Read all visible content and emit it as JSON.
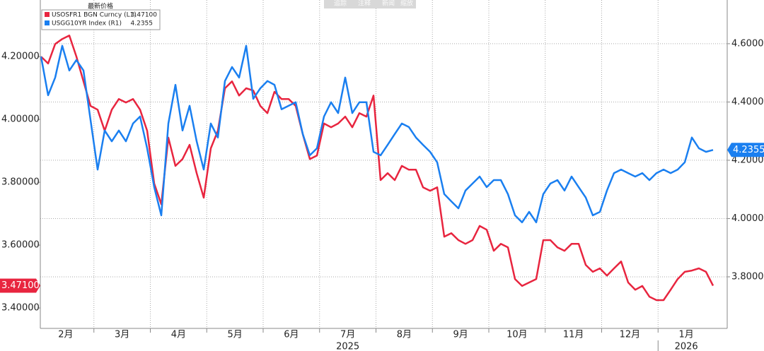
{
  "toolbar": [
    "追踪",
    "注释",
    "新闻",
    "缩放"
  ],
  "chart_data": {
    "type": "line",
    "legend_title": "最新价格",
    "months": [
      "2月",
      "3月",
      "4月",
      "5月",
      "6月",
      "7月",
      "8月",
      "9月",
      "10月",
      "11月",
      "12月",
      "1月"
    ],
    "years": [
      "2025",
      "2026"
    ],
    "ylim": [
      3.335,
      4.38
    ],
    "yticks": [
      {
        "value": 3.4,
        "label": "3.40000"
      },
      {
        "value": 3.6,
        "label": "3.60000"
      },
      {
        "value": 3.8,
        "label": "3.80000"
      },
      {
        "value": 4.0,
        "label": "4.00000"
      },
      {
        "value": 4.2,
        "label": "4.20000"
      }
    ],
    "y2lim": [
      3.623,
      4.75
    ],
    "y2ticks": [
      {
        "value": 3.8,
        "label": "3.8000"
      },
      {
        "value": 4.0,
        "label": "4.0000"
      },
      {
        "value": 4.2,
        "label": "4.2000"
      },
      {
        "value": 4.4,
        "label": "4.4000"
      },
      {
        "value": 4.6,
        "label": "4.6000"
      }
    ],
    "grid": true,
    "series": [
      {
        "name": "USOSFR1 BGN Curncy  (L1)",
        "color": "#e8253f",
        "axis": "y",
        "last_value_label": "3.47100",
        "values": [
          4.2,
          4.178,
          4.24,
          4.256,
          4.267,
          4.2,
          4.121,
          4.043,
          4.031,
          3.964,
          4.031,
          4.065,
          4.054,
          4.065,
          4.031,
          3.964,
          3.796,
          3.73,
          3.942,
          3.852,
          3.874,
          3.919,
          3.829,
          3.751,
          3.908,
          3.964,
          4.099,
          4.121,
          4.076,
          4.099,
          4.092,
          4.043,
          4.02,
          4.088,
          4.065,
          4.065,
          4.043,
          3.953,
          3.874,
          3.885,
          3.987,
          3.975,
          3.987,
          4.009,
          3.975,
          4.02,
          4.009,
          4.076,
          3.807,
          3.829,
          3.807,
          3.852,
          3.84,
          3.84,
          3.784,
          3.773,
          3.784,
          3.627,
          3.638,
          3.616,
          3.604,
          3.616,
          3.661,
          3.649,
          3.582,
          3.604,
          3.593,
          3.492,
          3.47,
          3.481,
          3.492,
          3.616,
          3.616,
          3.593,
          3.582,
          3.604,
          3.604,
          3.537,
          3.515,
          3.526,
          3.503,
          3.526,
          3.548,
          3.481,
          3.458,
          3.47,
          3.436,
          3.425,
          3.425,
          3.458,
          3.492,
          3.515,
          3.519,
          3.526,
          3.515,
          3.471
        ]
      },
      {
        "name": "USGG10YR Index  (R1)",
        "color": "#1a7ff0",
        "axis": "y2",
        "last_value_label": "4.2355",
        "values": [
          4.556,
          4.423,
          4.484,
          4.593,
          4.508,
          4.544,
          4.508,
          4.338,
          4.168,
          4.302,
          4.265,
          4.302,
          4.265,
          4.326,
          4.35,
          4.241,
          4.108,
          4.011,
          4.326,
          4.459,
          4.302,
          4.387,
          4.265,
          4.168,
          4.326,
          4.278,
          4.472,
          4.52,
          4.484,
          4.593,
          4.411,
          4.447,
          4.472,
          4.459,
          4.375,
          4.387,
          4.399,
          4.29,
          4.217,
          4.241,
          4.35,
          4.399,
          4.362,
          4.484,
          4.362,
          4.399,
          4.399,
          4.229,
          4.217,
          4.253,
          4.29,
          4.326,
          4.314,
          4.278,
          4.253,
          4.229,
          4.193,
          4.084,
          4.059,
          4.035,
          4.096,
          4.12,
          4.144,
          4.108,
          4.132,
          4.132,
          4.084,
          4.011,
          3.987,
          4.023,
          3.987,
          4.084,
          4.12,
          4.132,
          4.096,
          4.144,
          4.108,
          4.072,
          4.011,
          4.023,
          4.096,
          4.156,
          4.168,
          4.156,
          4.144,
          4.156,
          4.132,
          4.156,
          4.168,
          4.156,
          4.168,
          4.193,
          4.278,
          4.241,
          4.229,
          4.2355
        ]
      }
    ]
  }
}
